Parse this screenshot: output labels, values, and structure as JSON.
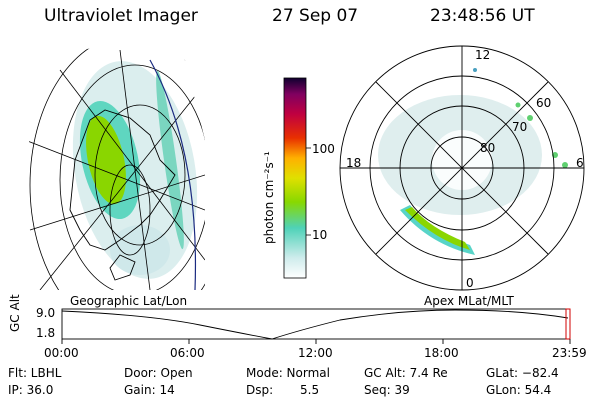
{
  "header": {
    "title": "Ultraviolet Imager",
    "date": "27 Sep 07",
    "time": "23:48:56 UT"
  },
  "colors": {
    "background": "#ffffff",
    "foreground": "#000000",
    "aurora_green": "#7fd000",
    "aurora_cyan": "#58d4c8",
    "aurora_pale": "#d8ecec",
    "time_marker": "#d00000"
  },
  "geo_panel": {
    "label": "Geographic Lat/Lon"
  },
  "apex_panel": {
    "label": "Apex MLat/MLT",
    "mlt_labels": {
      "top": "12",
      "left": "18",
      "right": "6",
      "bottom": "0"
    },
    "mlat_labels": [
      "60",
      "70",
      "80"
    ]
  },
  "colorbar": {
    "unit": "photon cm⁻²s⁻¹",
    "ticks": [
      "100",
      "10"
    ]
  },
  "altitude_plot": {
    "ylabel": "GC Alt",
    "y_ticks": [
      "9.0",
      "1.8"
    ],
    "x_ticks": [
      "00:00",
      "06:00",
      "12:00",
      "18:00",
      "23:59"
    ]
  },
  "info": {
    "filter": "Flt: LBHL",
    "ip": "IP: 36.0",
    "door": "Door: Open",
    "gain": "Gain: 14",
    "mode": "Mode: Normal",
    "dsp_label": "Dsp:",
    "dsp_value": "5.5",
    "gc_alt": "GC Alt: 7.4 Re",
    "seq": "Seq: 39",
    "glat": "GLat: −82.4",
    "glon": "GLon: 54.4"
  }
}
